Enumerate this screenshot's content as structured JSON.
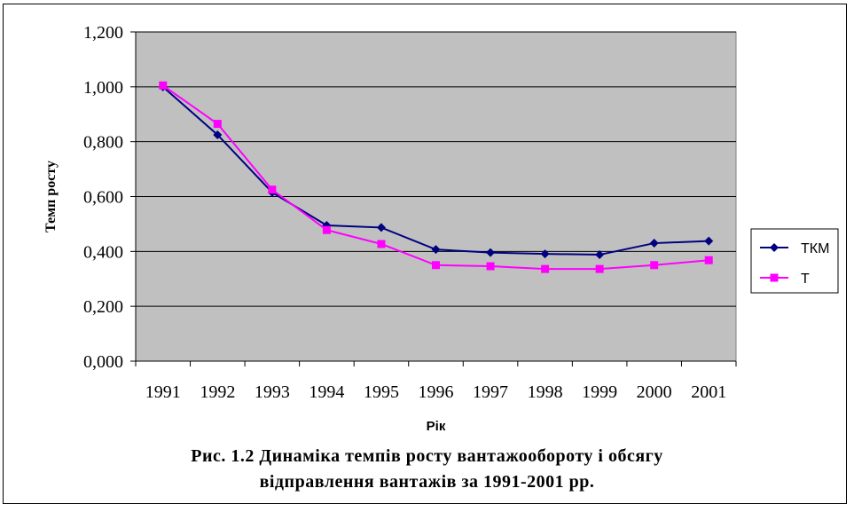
{
  "chart_data": {
    "type": "line",
    "x": [
      "1991",
      "1992",
      "1993",
      "1994",
      "1995",
      "1996",
      "1997",
      "1998",
      "1999",
      "2000",
      "2001"
    ],
    "series": [
      {
        "name": "ТКМ",
        "color": "#000080",
        "marker": "diamond",
        "values": [
          1.0,
          0.825,
          0.615,
          0.495,
          0.487,
          0.407,
          0.396,
          0.391,
          0.388,
          0.43,
          0.438
        ]
      },
      {
        "name": "Т",
        "color": "#ff00ff",
        "marker": "square",
        "values": [
          1.005,
          0.865,
          0.625,
          0.478,
          0.427,
          0.35,
          0.346,
          0.336,
          0.336,
          0.35,
          0.368
        ]
      }
    ],
    "xlabel": "Рік",
    "ylabel": "Темп росту",
    "ylim": [
      0,
      1.2
    ],
    "yticks": [
      "0,000",
      "0,200",
      "0,400",
      "0,600",
      "0,800",
      "1,000",
      "1,200"
    ],
    "grid": true,
    "legend": "right",
    "plot_background": "#c0c0c0"
  },
  "caption": {
    "line1": "Рис. 1.2 Динаміка темпів росту вантажообороту і обсягу",
    "line2": "відправлення вантажів за 1991-2001 рр."
  }
}
